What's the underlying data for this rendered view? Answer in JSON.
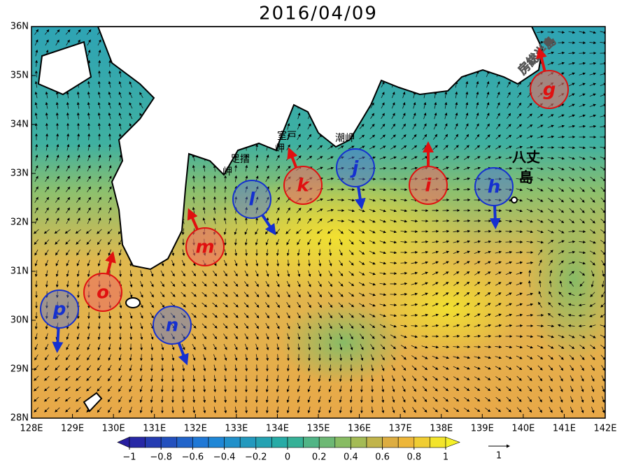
{
  "title": "2016/04/09",
  "map": {
    "lon_range": [
      128,
      142
    ],
    "lat_range": [
      28,
      36
    ],
    "lon_ticks": [
      {
        "value": 128,
        "label": "128E"
      },
      {
        "value": 129,
        "label": "129E"
      },
      {
        "value": 130,
        "label": "130E"
      },
      {
        "value": 131,
        "label": "131E"
      },
      {
        "value": 132,
        "label": "132E"
      },
      {
        "value": 133,
        "label": "133E"
      },
      {
        "value": 134,
        "label": "134E"
      },
      {
        "value": 135,
        "label": "135E"
      },
      {
        "value": 136,
        "label": "136E"
      },
      {
        "value": 137,
        "label": "137E"
      },
      {
        "value": 138,
        "label": "138E"
      },
      {
        "value": 139,
        "label": "139E"
      },
      {
        "value": 140,
        "label": "140E"
      },
      {
        "value": 141,
        "label": "141E"
      },
      {
        "value": 142,
        "label": "142E"
      }
    ],
    "lat_ticks": [
      {
        "value": 28,
        "label": "28N"
      },
      {
        "value": 29,
        "label": "29N"
      },
      {
        "value": 30,
        "label": "30N"
      },
      {
        "value": 31,
        "label": "31N"
      },
      {
        "value": 32,
        "label": "32N"
      },
      {
        "value": 33,
        "label": "33N"
      },
      {
        "value": 34,
        "label": "34N"
      },
      {
        "value": 35,
        "label": "35N"
      },
      {
        "value": 36,
        "label": "36N"
      }
    ],
    "places": {
      "ashizuri": [
        "足摺",
        "岬"
      ],
      "muroto": [
        "室戸",
        "岬"
      ],
      "shiono": "潮岬",
      "hachijo": [
        "八丈",
        "島"
      ],
      "boso": "房総半島"
    },
    "markers": [
      "g",
      "h",
      "i",
      "j",
      "k",
      "l",
      "m",
      "n",
      "o",
      "p"
    ]
  },
  "colorbar": {
    "range": [
      -1,
      1
    ],
    "ticks": [
      {
        "value": -1,
        "label": "−1"
      },
      {
        "value": -0.8,
        "label": "−0.8"
      },
      {
        "value": -0.6,
        "label": "−0.6"
      },
      {
        "value": -0.4,
        "label": "−0.4"
      },
      {
        "value": -0.2,
        "label": "−0.2"
      },
      0,
      0.2,
      0.4,
      0.6,
      0.8,
      1
    ]
  },
  "reference_vector": "1"
}
